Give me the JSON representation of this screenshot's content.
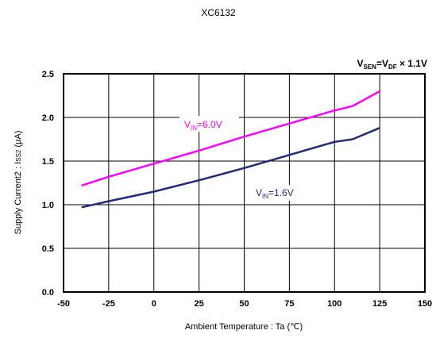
{
  "chart_data": {
    "type": "line",
    "title": "XC6132",
    "condition": {
      "main": "V",
      "sub1": "SEN",
      "mid": "=V",
      "sub2": "DF",
      "tail": " × 1.1V"
    },
    "xlabel": "Ambient Temperature : Ta (℃)",
    "ylabel": {
      "pre": "Supply Current2 : I",
      "sub": "SS2",
      "post": " (μA)"
    },
    "xlim": [
      -50,
      150
    ],
    "ylim": [
      0.0,
      2.5
    ],
    "xticks": [
      -50,
      -25,
      0,
      25,
      50,
      75,
      100,
      125,
      150
    ],
    "yticks": [
      "0.0",
      "0.5",
      "1.0",
      "1.5",
      "2.0",
      "2.5"
    ],
    "grid": true,
    "series": [
      {
        "name": {
          "main": "V",
          "sub": "IN",
          "rest": "=6.0V"
        },
        "color": "#ff00ff",
        "x": [
          -40,
          -25,
          0,
          25,
          50,
          75,
          100,
          110,
          125
        ],
        "y": [
          1.22,
          1.32,
          1.47,
          1.62,
          1.78,
          1.93,
          2.08,
          2.13,
          2.3
        ]
      },
      {
        "name": {
          "main": "V",
          "sub": "IN",
          "rest": "=1.6V"
        },
        "color": "#1f2a7a",
        "x": [
          -40,
          -25,
          0,
          25,
          50,
          75,
          100,
          110,
          125
        ],
        "y": [
          0.97,
          1.04,
          1.15,
          1.28,
          1.42,
          1.57,
          1.72,
          1.75,
          1.88
        ]
      }
    ]
  }
}
